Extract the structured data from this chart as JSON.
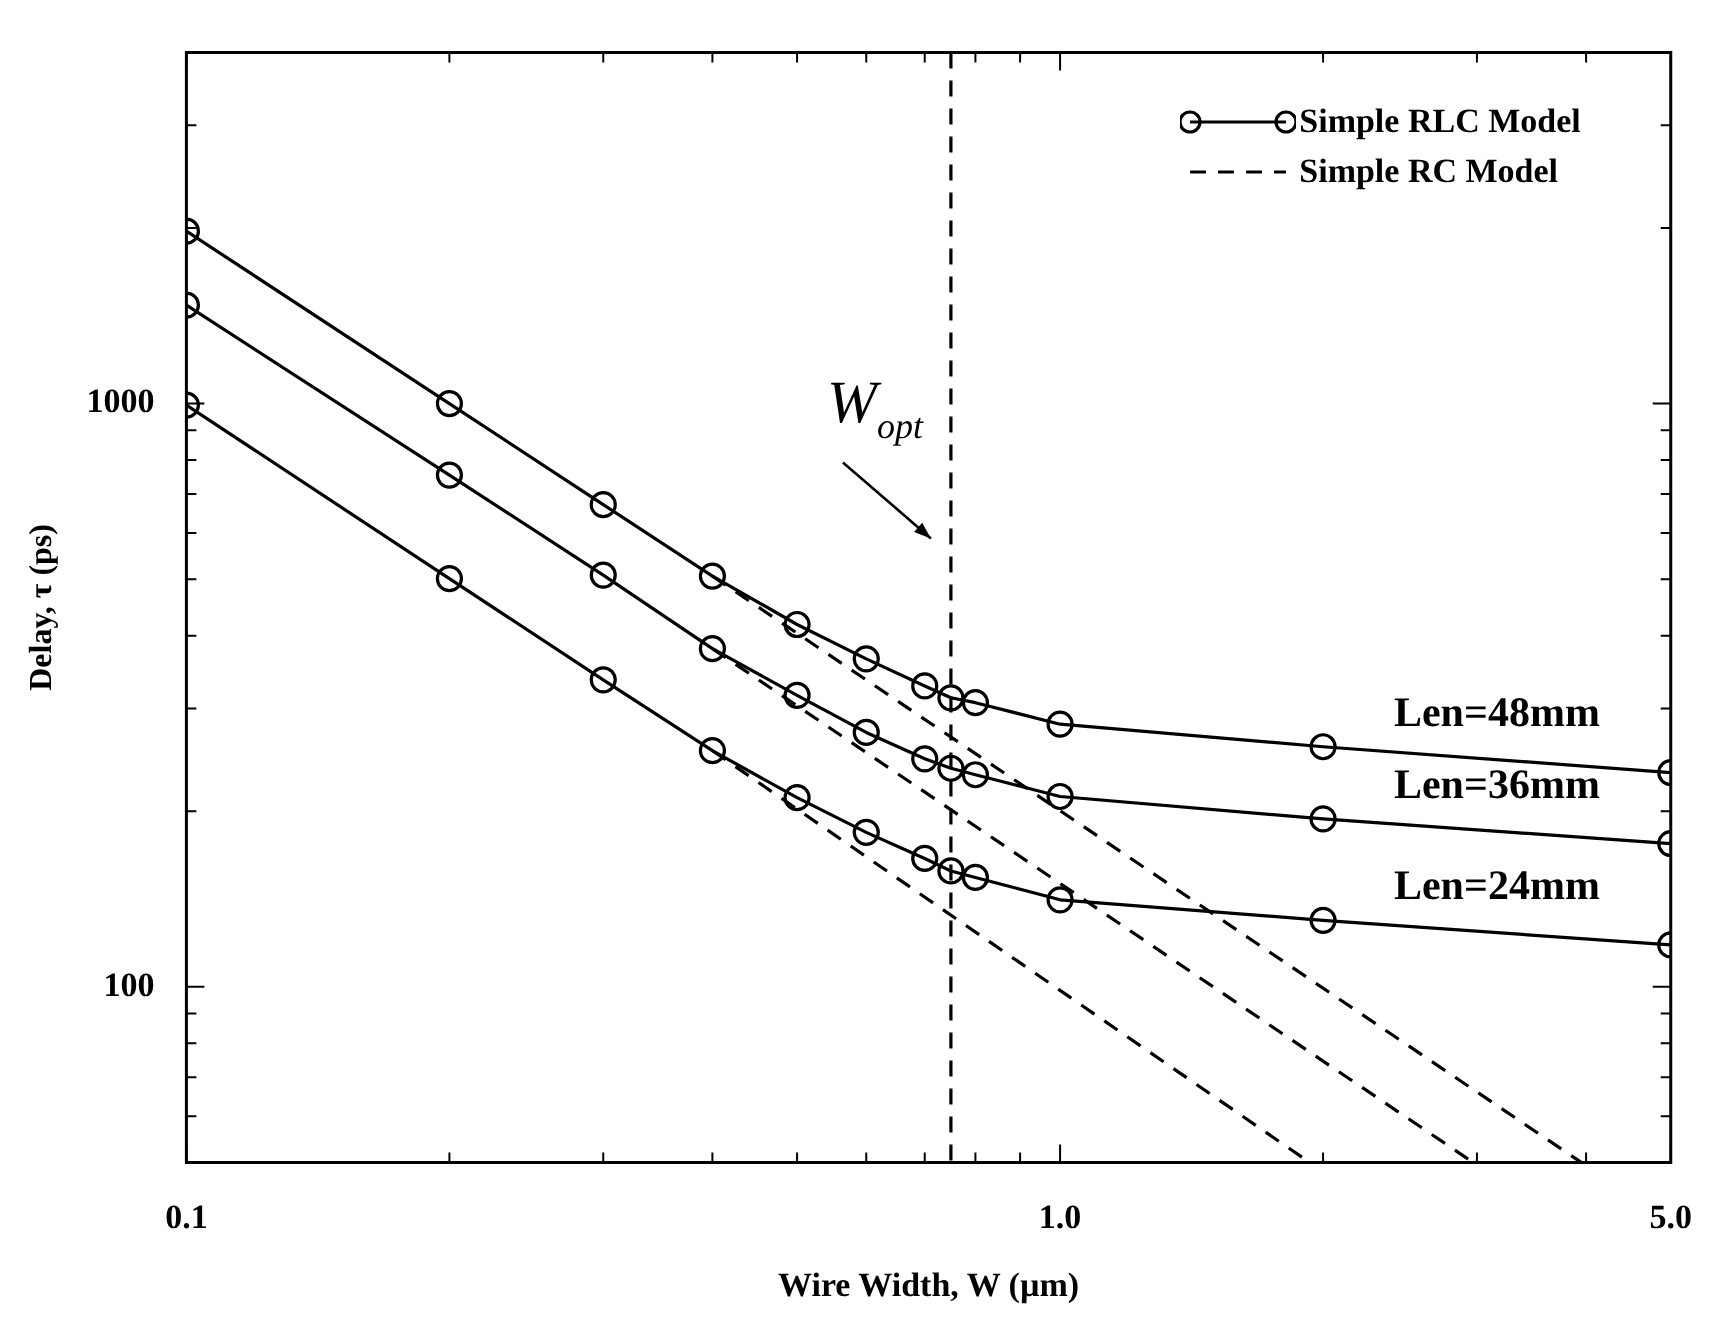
{
  "chart_data": {
    "type": "line",
    "xlabel": "Wire Width, W (µm)",
    "ylabel": "Delay, τ (ps)",
    "log": "xy",
    "legend": "top right",
    "xlim": [
      0.1,
      5
    ],
    "ylim": [
      50,
      4000
    ],
    "xticks": [
      {
        "value": 0.1,
        "label": "0.1"
      },
      {
        "value": 0.2,
        "label": null
      },
      {
        "value": 0.3,
        "label": null
      },
      {
        "value": 0.4,
        "label": null
      },
      {
        "value": 0.5,
        "label": null
      },
      {
        "value": 0.6,
        "label": null
      },
      {
        "value": 0.7,
        "label": null
      },
      {
        "value": 0.8,
        "label": null
      },
      {
        "value": 0.9,
        "label": null
      },
      {
        "value": 1,
        "label": "1.0"
      },
      {
        "value": 2,
        "label": null
      },
      {
        "value": 3,
        "label": null
      },
      {
        "value": 4,
        "label": null
      },
      {
        "value": 5,
        "label": "5.0"
      }
    ],
    "yticks": [
      {
        "value": 60,
        "label": null
      },
      {
        "value": 70,
        "label": null
      },
      {
        "value": 80,
        "label": null
      },
      {
        "value": 90,
        "label": null
      },
      100,
      {
        "value": 200,
        "label": null
      },
      {
        "value": 300,
        "label": null
      },
      {
        "value": 400,
        "label": null
      },
      {
        "value": 500,
        "label": null
      },
      {
        "value": 600,
        "label": null
      },
      {
        "value": 700,
        "label": null
      },
      {
        "value": 800,
        "label": null
      },
      {
        "value": 900,
        "label": null
      },
      1000,
      {
        "value": 2000,
        "label": null
      },
      {
        "value": 3000,
        "label": null
      }
    ],
    "series": [
      {
        "name": "Simple RLC Model",
        "color": "#000000",
        "marker": "circle",
        "line_style": "solid",
        "x": [
          0.1,
          0.2,
          0.3,
          0.4,
          0.5,
          0.6,
          0.7,
          0.75,
          0.8,
          1,
          2,
          5
        ],
        "values": [
          1975,
          1000,
          671,
          506,
          418,
          365,
          328,
          313,
          307,
          282,
          258,
          233
        ]
      },
      {
        "color": "#000000",
        "marker": "circle",
        "line_style": "solid",
        "x": [
          0.1,
          0.2,
          0.3,
          0.4,
          0.5,
          0.6,
          0.7,
          0.75,
          0.8,
          1,
          2,
          5
        ],
        "values": [
          1475,
          754,
          508,
          380,
          316,
          273,
          246,
          237,
          231,
          212,
          194,
          176
        ]
      },
      {
        "color": "#000000",
        "marker": "circle",
        "line_style": "solid",
        "x": [
          0.1,
          0.2,
          0.3,
          0.4,
          0.5,
          0.6,
          0.7,
          0.75,
          0.8,
          1,
          2,
          5
        ],
        "values": [
          994,
          501,
          336,
          254,
          211,
          184,
          166,
          158,
          154,
          141,
          130,
          118
        ]
      },
      {
        "name": "Simple RC Model",
        "color": "#000000",
        "marker": "none",
        "line_style": "dashed",
        "x": [
          0.4,
          3.95
        ],
        "values": [
          506,
          50
        ]
      },
      {
        "color": "#000000",
        "marker": "none",
        "line_style": "dashed",
        "x": [
          0.4,
          2.97
        ],
        "values": [
          380,
          50
        ]
      },
      {
        "color": "#000000",
        "marker": "none",
        "line_style": "dashed",
        "x": [
          0.4,
          1.93
        ],
        "values": [
          254,
          50
        ]
      }
    ],
    "ref_lines": [
      {
        "axis": "x",
        "value": 0.75,
        "label": "W$_{opt}$",
        "line_style": "dashed",
        "color": "#000000"
      }
    ],
    "annotations": [
      "Len=48mm",
      "Len=36mm",
      "Len=24mm"
    ]
  }
}
